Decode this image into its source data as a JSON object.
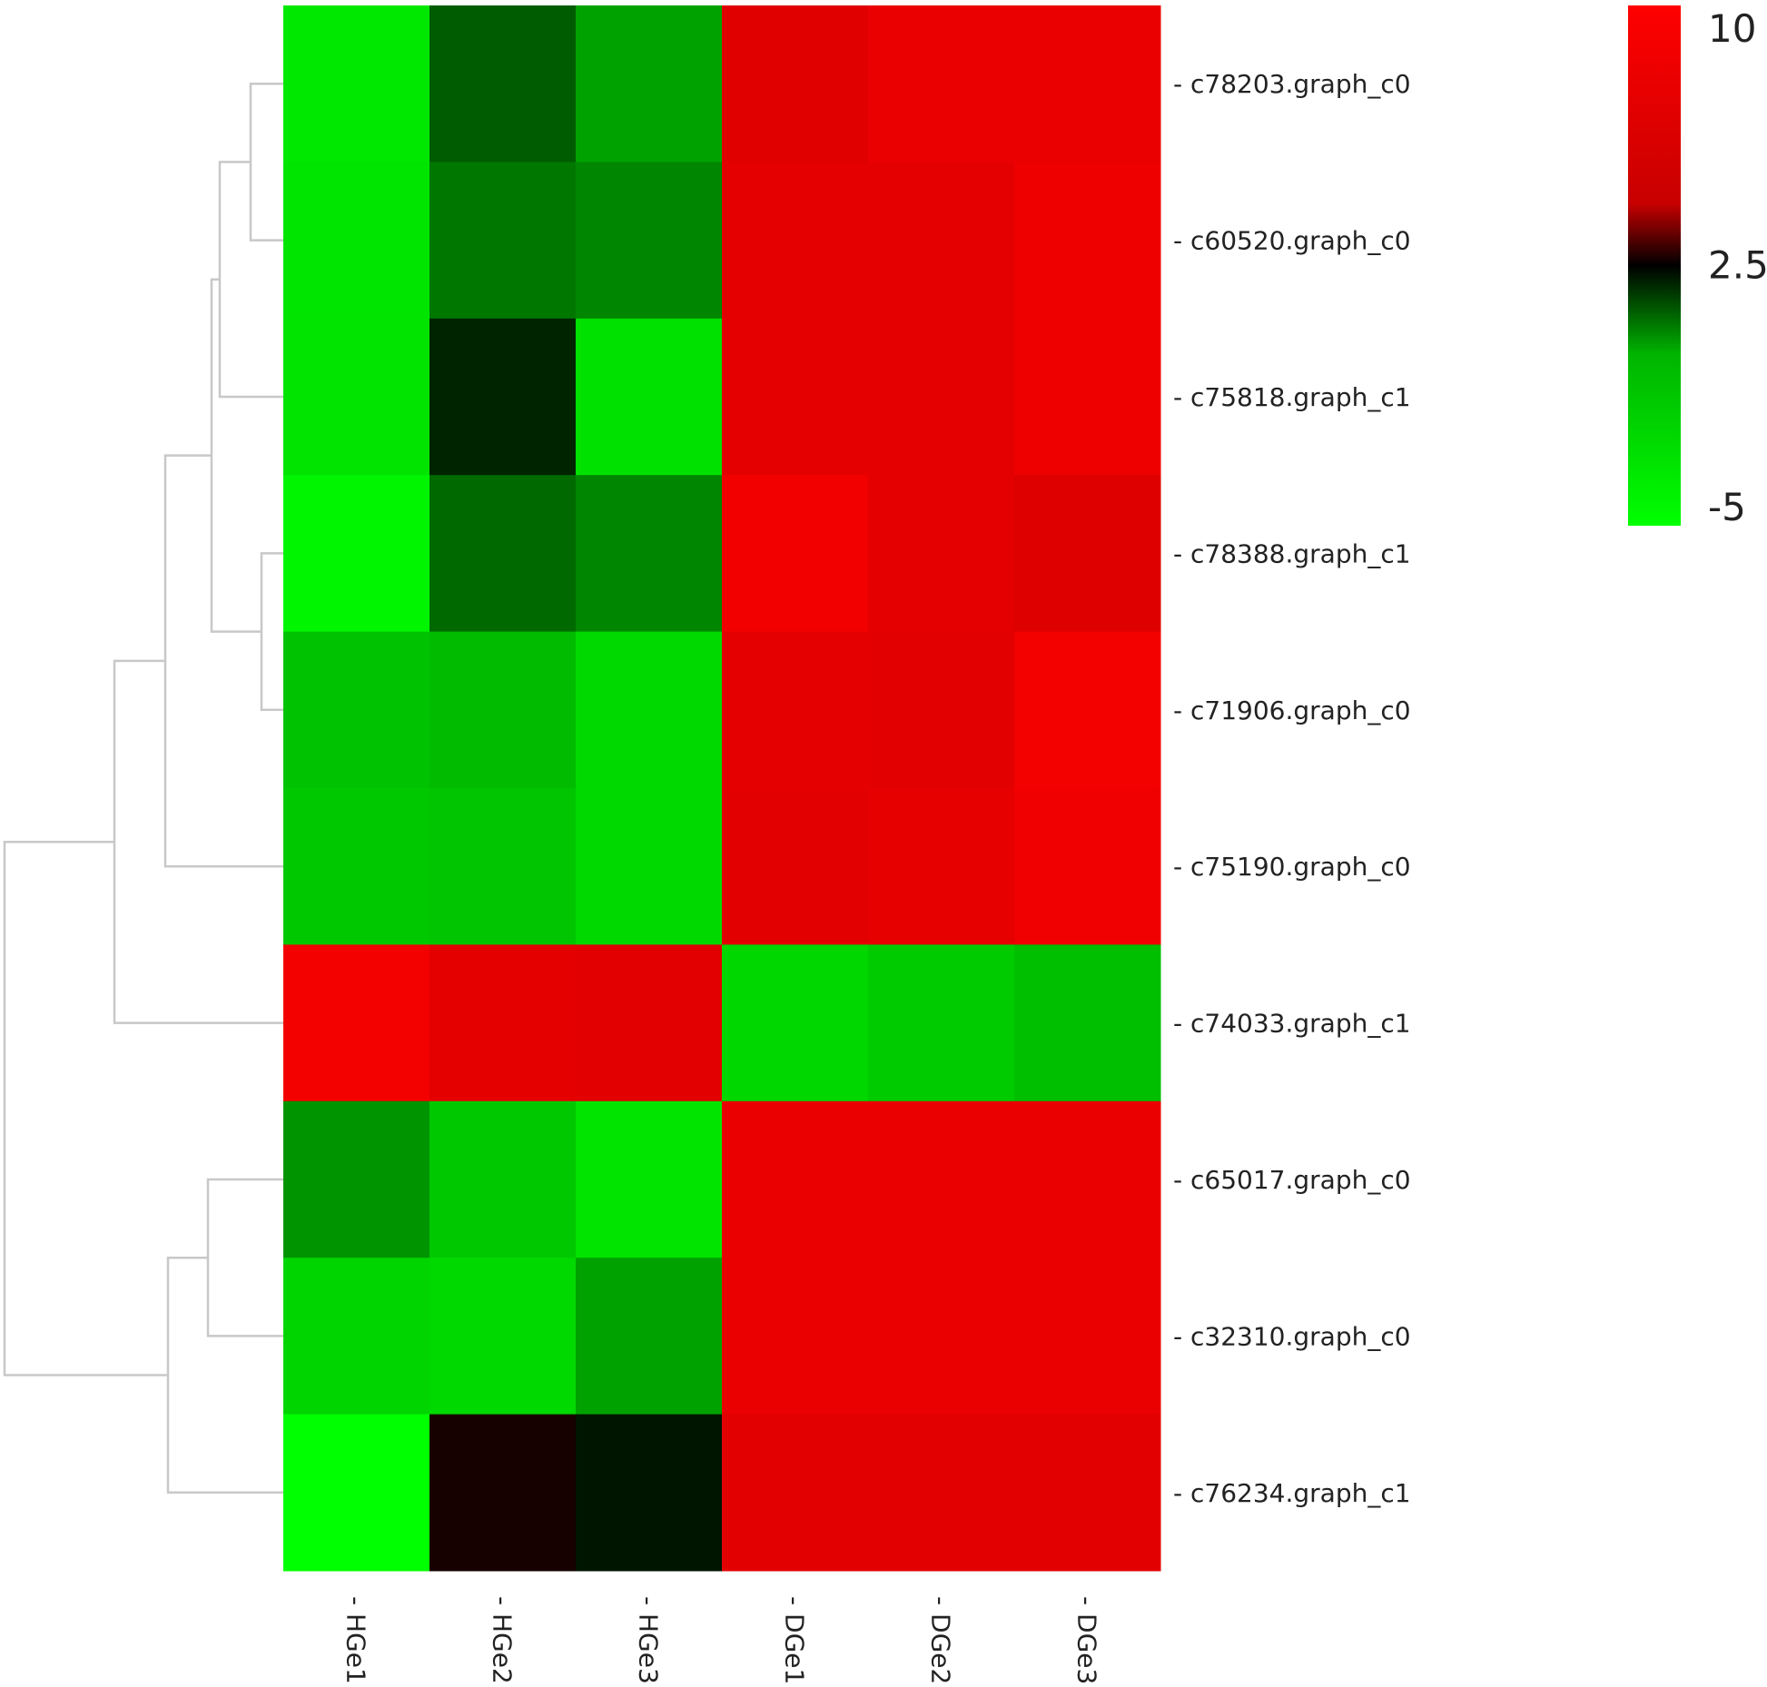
{
  "chart_data": {
    "type": "heatmap",
    "title": "",
    "xlabel": "",
    "ylabel": "",
    "columns": [
      "HGe1",
      "HGe2",
      "HGe3",
      "DGe1",
      "DGe2",
      "DGe3"
    ],
    "rows": [
      "c78203.graph_c0",
      "c60520.graph_c0",
      "c75818.graph_c1",
      "c78388.graph_c1",
      "c71906.graph_c0",
      "c75190.graph_c0",
      "c74033.graph_c1",
      "c65017.graph_c0",
      "c32310.graph_c0",
      "c76234.graph_c1"
    ],
    "values": [
      [
        -3.5,
        1.2,
        0.2,
        6.8,
        7.8,
        7.8
      ],
      [
        -3.3,
        0.8,
        0.6,
        7.2,
        7.2,
        8.3
      ],
      [
        -3.2,
        2.0,
        -3.0,
        7.2,
        7.2,
        8.3
      ],
      [
        -4.4,
        1.0,
        0.6,
        8.7,
        7.2,
        6.6
      ],
      [
        -1.0,
        -0.5,
        -2.5,
        7.2,
        7.0,
        8.8
      ],
      [
        -1.4,
        -1.2,
        -2.5,
        7.1,
        7.4,
        8.4
      ],
      [
        8.8,
        7.3,
        7.0,
        -2.3,
        -1.6,
        -0.7
      ],
      [
        0.4,
        -1.4,
        -3.2,
        7.8,
        7.8,
        7.8
      ],
      [
        -2.2,
        -2.5,
        0.2,
        7.8,
        7.8,
        7.8
      ],
      [
        -5.0,
        2.7,
        2.2,
        7.0,
        7.0,
        7.0
      ]
    ],
    "color_scale": {
      "min": -5,
      "max": 10,
      "ticks": [
        "10",
        "2.5",
        "-5"
      ],
      "colors": [
        "#00ff00",
        "#00b400",
        "#000000",
        "#c80000",
        "#ff0000"
      ]
    }
  }
}
